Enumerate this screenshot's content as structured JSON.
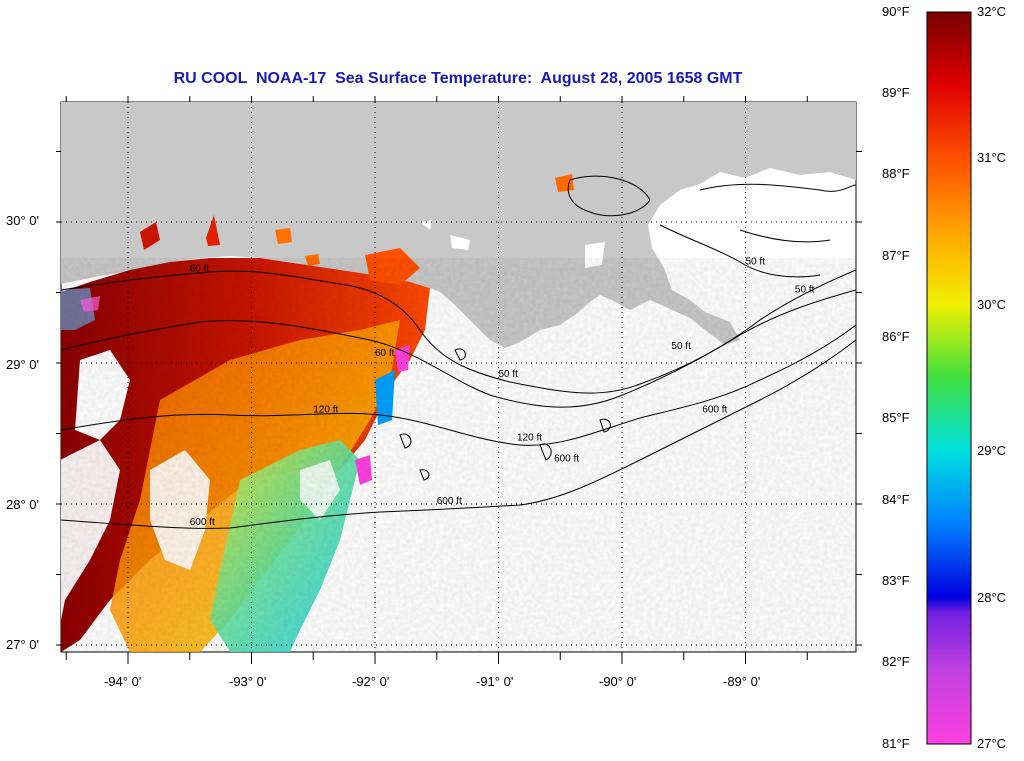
{
  "title": "RU COOL  NOAA-17  Sea Surface Temperature:  August 28, 2005 1658 GMT",
  "map": {
    "lat_labels": [
      {
        "lat": 30,
        "text": "30° 0'"
      },
      {
        "lat": 29,
        "text": "29° 0'"
      },
      {
        "lat": 28,
        "text": "28° 0'"
      },
      {
        "lat": 27,
        "text": "27° 0'"
      }
    ],
    "lon_labels": [
      {
        "lon": -94,
        "text": "-94° 0'"
      },
      {
        "lon": -93,
        "text": "-93° 0'"
      },
      {
        "lon": -92,
        "text": "-92° 0'"
      },
      {
        "lon": -91,
        "text": "-91° 0'"
      },
      {
        "lon": -90,
        "text": "-90° 0'"
      },
      {
        "lon": -89,
        "text": "-89° 0'"
      }
    ],
    "contour_labels": [
      {
        "text": "60 ft",
        "lon": -93.5,
        "lat": 29.65
      },
      {
        "text": "60 ft",
        "lon": -92.0,
        "lat": 29.05
      },
      {
        "text": "120 ft",
        "lon": -92.5,
        "lat": 28.65
      },
      {
        "text": "120 ft",
        "lon": -90.85,
        "lat": 28.45
      },
      {
        "text": "600 ft",
        "lon": -93.5,
        "lat": 27.85
      },
      {
        "text": "600 ft",
        "lon": -91.5,
        "lat": 28.0
      },
      {
        "text": "600 ft",
        "lon": -89.35,
        "lat": 28.65
      },
      {
        "text": "600 ft",
        "lon": -90.55,
        "lat": 28.3
      },
      {
        "text": "50 ft",
        "lon": -91.0,
        "lat": 28.9
      },
      {
        "text": "50 ft",
        "lon": -89.6,
        "lat": 29.1
      },
      {
        "text": "50 ft",
        "lon": -89.0,
        "lat": 29.7
      },
      {
        "text": "50 ft",
        "lon": -88.6,
        "lat": 29.5
      }
    ],
    "colors": {
      "land": "#c8c8c8",
      "no_data": "#ffffff",
      "contour": "#000000",
      "title": "#1a1ab0"
    }
  },
  "colorbar": {
    "f_labels": [
      "90°F",
      "89°F",
      "88°F",
      "87°F",
      "86°F",
      "85°F",
      "84°F",
      "83°F",
      "82°F",
      "81°F"
    ],
    "c_labels": [
      "32°C",
      "31°C",
      "30°C",
      "29°C",
      "28°C",
      "27°C"
    ],
    "f_range": [
      81,
      90
    ]
  }
}
